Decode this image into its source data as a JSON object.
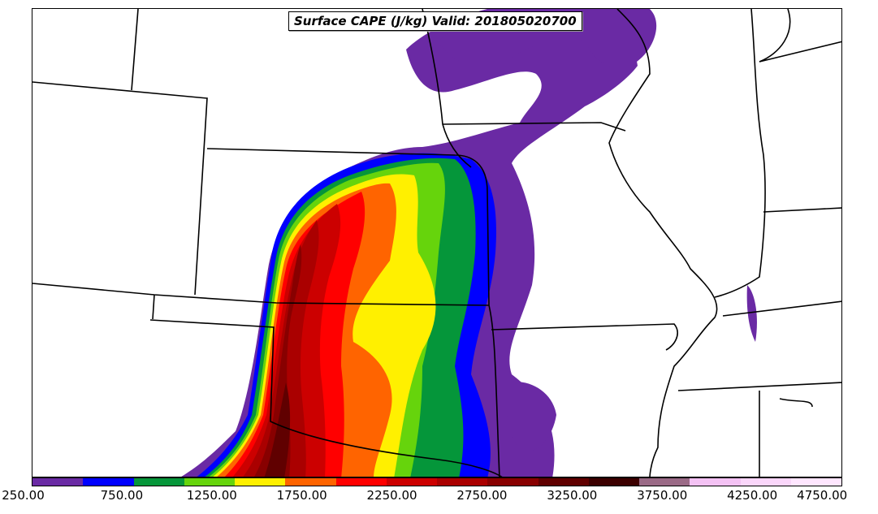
{
  "title": "Surface CAPE (J/kg) Valid: 201805020700",
  "colorbar": {
    "colors": [
      "#6a2aa4",
      "#0000ff",
      "#05963a",
      "#66d40c",
      "#fff000",
      "#ff6400",
      "#ff0000",
      "#cc0000",
      "#aa0000",
      "#880000",
      "#600000",
      "#3c0000",
      "#9a6a86",
      "#f4c2f4",
      "#fad6fa",
      "#ffe6ff"
    ],
    "tick_labels": [
      "250.00",
      "750.00",
      "1250.00",
      "1750.00",
      "2250.00",
      "2750.00",
      "3250.00",
      "3750.00",
      "4250.00",
      "4750.00"
    ]
  }
}
